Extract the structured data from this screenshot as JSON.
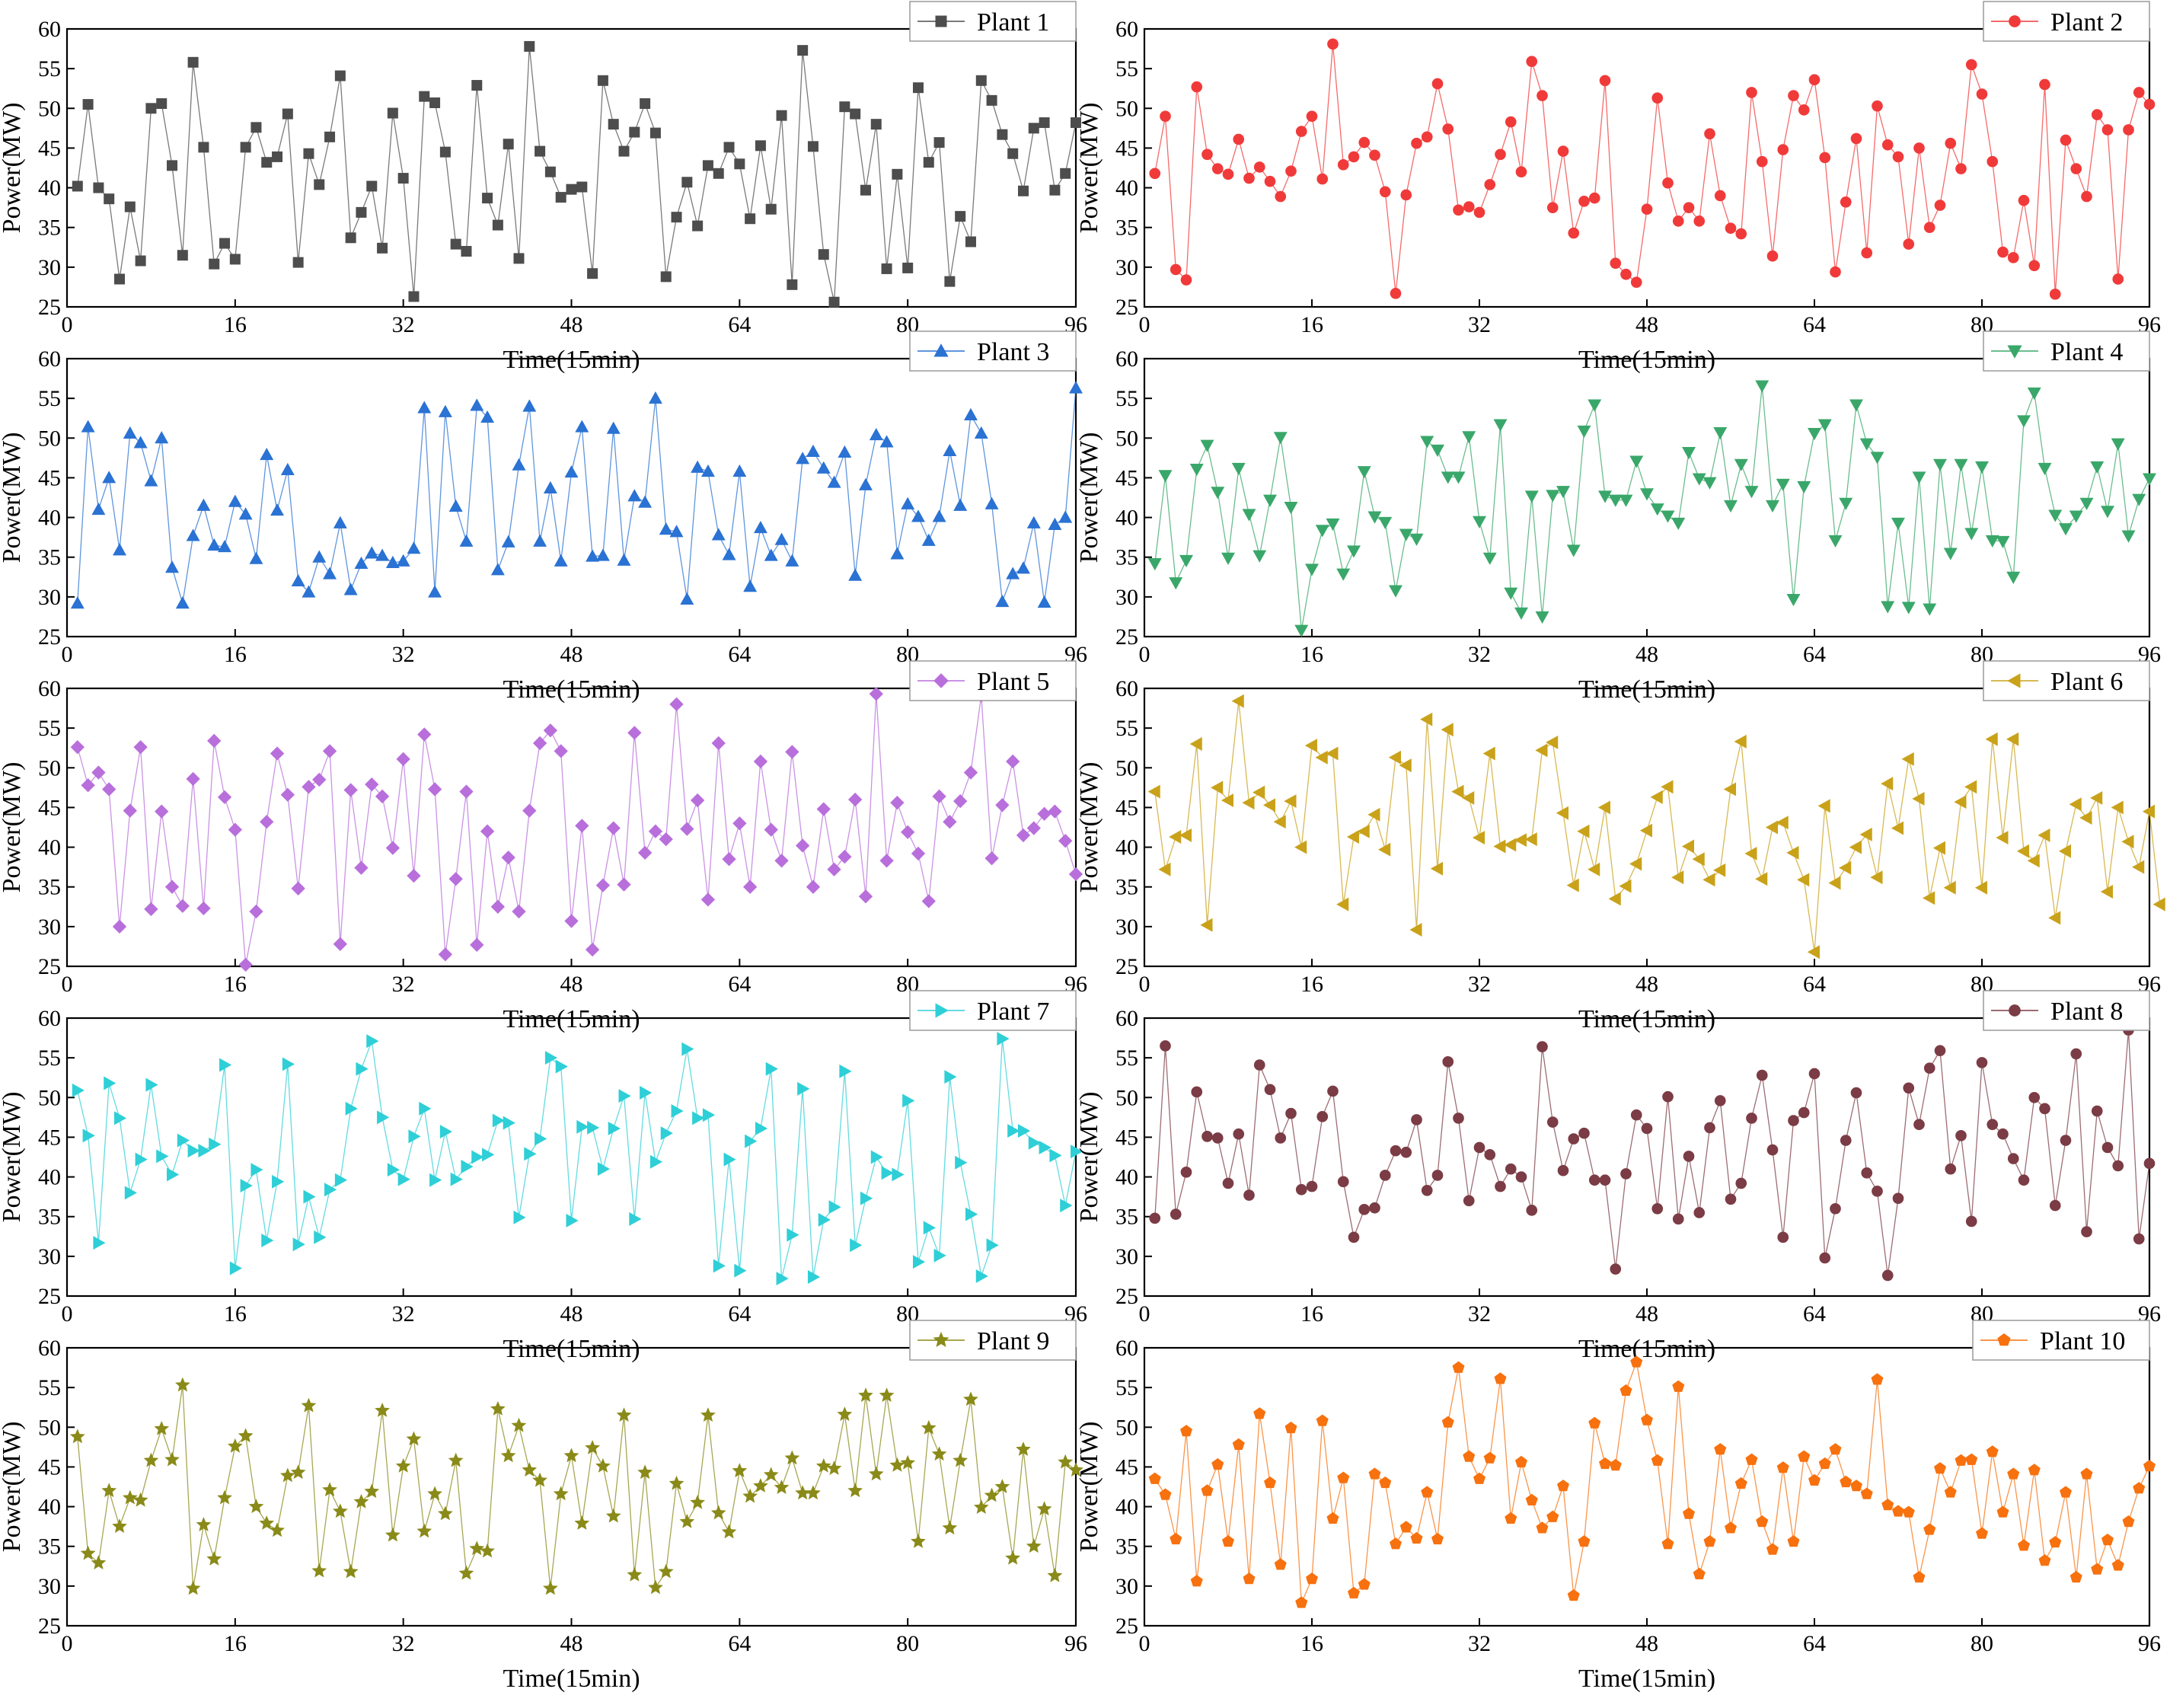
{
  "chart_data": {
    "type": "line",
    "layout": "5 rows x 2 columns of small-multiple line plots",
    "xlabel": "Time(15min)",
    "ylabel": "Power(MW)",
    "xlim": [
      0,
      96
    ],
    "ylim": [
      25,
      60
    ],
    "xticks": [
      0,
      16,
      32,
      48,
      64,
      80,
      96
    ],
    "yticks": [
      25,
      30,
      35,
      40,
      45,
      50,
      55,
      60
    ],
    "grid": false,
    "legend_position": "top-right",
    "panels": [
      {
        "name": "Plant 1",
        "color": "#4d4d4d",
        "marker": "square",
        "values": [
          40.2,
          50.5,
          40,
          38.6,
          28.5,
          37.6,
          30.8,
          50,
          50.6,
          42.8,
          31.5,
          55.8,
          45.1,
          30.4,
          33,
          31,
          45.1,
          47.6,
          43.2,
          43.9,
          49.3,
          30.6,
          44.3,
          40.4,
          46.4,
          54.1,
          33.7,
          36.9,
          40.2,
          32.4,
          49.4,
          41.2,
          26.3,
          51.5,
          50.7,
          44.5,
          32.9,
          32,
          52.9,
          38.7,
          35.3,
          45.5,
          31.1,
          57.8,
          44.6,
          42,
          38.8,
          39.8,
          40.1,
          29.2,
          53.5,
          48,
          44.6,
          47,
          50.6,
          46.9,
          28.8,
          36.3,
          40.7,
          35.2,
          42.8,
          41.8,
          45.1,
          43,
          36.1,
          45.3,
          37.3,
          49.1,
          27.8,
          57.3,
          45.2,
          31.6,
          25.6,
          50.2,
          49.3,
          39.7,
          48,
          29.8,
          41.7,
          29.9,
          52.6,
          43.2,
          45.7,
          28.2,
          36.4,
          33.2,
          53.5,
          51,
          46.7,
          44.3,
          39.6,
          47.5,
          48.2,
          39.7,
          41.8,
          48.2
        ]
      },
      {
        "name": "Plant 2",
        "color": "#f03a3a",
        "marker": "circle",
        "values": [
          41.8,
          49,
          29.7,
          28.4,
          52.7,
          44.2,
          42.4,
          41.7,
          46.1,
          41.2,
          42.6,
          40.8,
          38.9,
          42.1,
          47.1,
          49,
          41.1,
          58.1,
          42.9,
          43.9,
          45.7,
          44.1,
          39.5,
          26.7,
          39.1,
          45.6,
          46.4,
          53.1,
          47.4,
          37.2,
          37.6,
          36.9,
          40.4,
          44.2,
          48.3,
          42,
          55.9,
          51.6,
          37.5,
          44.6,
          34.3,
          38.3,
          38.7,
          53.5,
          30.5,
          29.1,
          28.1,
          37.3,
          51.3,
          40.6,
          35.8,
          37.5,
          35.8,
          46.8,
          39,
          34.9,
          34.2,
          52,
          43.3,
          31.4,
          44.8,
          51.6,
          49.8,
          53.6,
          43.8,
          29.4,
          38.2,
          46.2,
          31.8,
          50.3,
          45.4,
          43.9,
          32.9,
          45,
          35,
          37.8,
          45.6,
          42.4,
          55.5,
          51.8,
          43.3,
          31.9,
          31.2,
          38.4,
          30.2,
          53,
          26.6,
          46,
          42.4,
          38.9,
          49.2,
          47.3,
          28.5,
          47.3,
          52,
          50.5
        ]
      },
      {
        "name": "Plant 3",
        "color": "#2a72d3",
        "marker": "triangle-up",
        "values": [
          29.2,
          51.4,
          41,
          45,
          35.9,
          50.6,
          49.4,
          44.6,
          50,
          33.7,
          29.2,
          37.7,
          41.5,
          36.5,
          36.3,
          42,
          40.4,
          34.8,
          47.9,
          40.9,
          46,
          32,
          30.6,
          35,
          32.9,
          39.3,
          30.9,
          34.2,
          35.5,
          35.2,
          34.3,
          34.5,
          36.1,
          53.8,
          30.6,
          53.3,
          41.4,
          37,
          54.1,
          52.6,
          33.4,
          36.9,
          46.6,
          54,
          37,
          43.7,
          34.5,
          45.7,
          51.4,
          35.1,
          35.2,
          51.2,
          34.6,
          42.7,
          41.9,
          55,
          38.5,
          38.2,
          29.7,
          46.3,
          45.8,
          37.8,
          35.3,
          45.8,
          31.3,
          38.7,
          35.2,
          37.2,
          34.5,
          47.4,
          48.3,
          46.2,
          44.4,
          48.2,
          32.7,
          44.1,
          50.4,
          49.5,
          35.4,
          41.7,
          40.1,
          37.1,
          40.1,
          48.4,
          41.5,
          52.9,
          50.6,
          41.7,
          29.4,
          32.9,
          33.6,
          39.3,
          29.3,
          39.1,
          40,
          56.3
        ]
      },
      {
        "name": "Plant 4",
        "color": "#3aa76a",
        "marker": "triangle-down",
        "values": [
          34.2,
          45.3,
          31.8,
          34.6,
          46.1,
          49.1,
          43.2,
          34.9,
          46.2,
          40.4,
          35.2,
          42.2,
          50.1,
          41.3,
          25.8,
          33.5,
          38.4,
          39.2,
          32.9,
          35.8,
          45.8,
          40.1,
          39.4,
          30.8,
          37.9,
          37.3,
          49.6,
          48.5,
          45.1,
          45.1,
          50.2,
          39.5,
          34.9,
          51.7,
          30.5,
          28,
          42.7,
          27.5,
          42.8,
          43.3,
          35.9,
          50.9,
          54.2,
          42.7,
          42.2,
          42.2,
          47.1,
          43,
          41.1,
          40.2,
          39.3,
          48.2,
          44.9,
          44.4,
          50.7,
          41.5,
          46.7,
          43.3,
          56.6,
          41.5,
          44.2,
          29.7,
          43.9,
          50.6,
          51.7,
          37.1,
          41.8,
          54.2,
          49.3,
          47.6,
          28.8,
          39.3,
          28.7,
          45.1,
          28.5,
          46.7,
          35.5,
          46.7,
          38,
          46.4,
          37.1,
          37,
          32.5,
          52.2,
          55.7,
          46.2,
          40.3,
          38.6,
          40.2,
          41.8,
          46.4,
          40.8,
          49.3,
          37.7,
          42.3,
          44.9
        ]
      },
      {
        "name": "Plant 5",
        "color": "#b86fdb",
        "marker": "diamond",
        "values": [
          52.6,
          47.8,
          49.4,
          47.3,
          30,
          44.6,
          52.6,
          32.2,
          44.5,
          35,
          32.6,
          48.6,
          32.3,
          53.4,
          46.3,
          42.2,
          25.2,
          31.9,
          43.2,
          51.8,
          46.6,
          34.8,
          47.6,
          48.5,
          52.1,
          27.8,
          47.2,
          37.4,
          47.9,
          46.4,
          39.9,
          51.1,
          36.4,
          54.2,
          47.3,
          26.5,
          36,
          47,
          27.7,
          42,
          32.5,
          38.7,
          31.9,
          44.6,
          53.1,
          54.7,
          52.1,
          30.7,
          42.7,
          27.1,
          35.2,
          42.4,
          35.3,
          54.4,
          39.3,
          42,
          41,
          58,
          42.3,
          45.9,
          33.4,
          53.1,
          38.5,
          43,
          35,
          50.8,
          42.2,
          38.3,
          52,
          40.2,
          35,
          44.8,
          37.2,
          38.8,
          46,
          33.8,
          59.3,
          38.3,
          45.6,
          41.9,
          39.2,
          33.2,
          46.4,
          43.2,
          45.8,
          49.4,
          59.1,
          38.6,
          45.3,
          50.8,
          41.5,
          42.4,
          44.2,
          44.5,
          40.8,
          36.6
        ]
      },
      {
        "name": "Plant 6",
        "color": "#c9a21a",
        "marker": "triangle-left",
        "values": [
          47,
          37.2,
          41.3,
          41.5,
          53,
          30.2,
          47.5,
          45.9,
          58.4,
          45.6,
          46.9,
          45.3,
          43.2,
          45.8,
          40,
          52.8,
          51.3,
          51.8,
          32.8,
          41.3,
          42,
          44.1,
          39.7,
          51.3,
          50.3,
          29.6,
          56.1,
          37.3,
          54.8,
          47,
          46.2,
          41.2,
          51.8,
          40.1,
          40.3,
          40.9,
          41,
          52.2,
          53.2,
          44.3,
          35.2,
          42,
          37.2,
          45,
          33.5,
          35.1,
          37.9,
          42.1,
          46.3,
          47.6,
          36.2,
          40.1,
          38.5,
          35.9,
          37.1,
          47.3,
          53.3,
          39.2,
          36,
          42.5,
          43.1,
          39.3,
          35.9,
          26.8,
          45.2,
          35.5,
          37.4,
          40,
          41.6,
          36.2,
          48,
          42.4,
          51.1,
          46.1,
          33.6,
          39.9,
          34.9,
          45.7,
          47.6,
          34.9,
          53.6,
          41.2,
          53.6,
          39.5,
          38.3,
          41.5,
          31.1,
          39.5,
          45.4,
          43.7,
          46.2,
          34.4,
          45,
          40.7,
          37.5,
          44.5,
          32.8
        ]
      },
      {
        "name": "Plant 7",
        "color": "#2fcfd7",
        "marker": "triangle-right",
        "values": [
          50.9,
          45.2,
          31.7,
          51.8,
          47.4,
          38,
          42.2,
          51.6,
          42.6,
          40.3,
          44.6,
          43.3,
          43.3,
          44.1,
          54.1,
          28.5,
          38.9,
          40.9,
          32,
          39.4,
          54.2,
          31.5,
          37.5,
          32.4,
          38.4,
          39.6,
          48.6,
          53.6,
          57.1,
          47.5,
          40.9,
          39.7,
          45.1,
          48.6,
          39.6,
          45.7,
          39.7,
          41.3,
          42.5,
          42.8,
          47.1,
          46.8,
          34.9,
          42.9,
          44.8,
          55,
          53.9,
          34.5,
          46.3,
          46.2,
          41,
          46.1,
          50.2,
          34.7,
          50.6,
          41.9,
          45.5,
          48.3,
          56.1,
          47.4,
          47.8,
          28.8,
          42.2,
          28.2,
          44.5,
          46.1,
          53.6,
          27.2,
          32.7,
          51.1,
          27.4,
          34.6,
          36.2,
          53.3,
          31.4,
          37.3,
          42.5,
          40.5,
          40.3,
          49.6,
          29.3,
          33.6,
          30.1,
          52.6,
          41.8,
          35.3,
          27.5,
          31.4,
          57.4,
          45.8,
          45.8,
          44.3,
          43.7,
          42.7,
          36.4,
          43.2
        ]
      },
      {
        "name": "Plant 8",
        "color": "#7b3c45",
        "marker": "circle",
        "values": [
          34.8,
          56.5,
          35.3,
          40.6,
          50.7,
          45.1,
          44.9,
          39.2,
          45.4,
          37.7,
          54.1,
          51,
          44.9,
          48,
          38.4,
          38.8,
          47.6,
          50.8,
          39.4,
          32.4,
          35.9,
          36.1,
          40.2,
          43.3,
          43.1,
          47.2,
          38.3,
          40.2,
          54.5,
          47.4,
          37,
          43.7,
          42.8,
          38.8,
          41,
          40,
          35.8,
          56.4,
          46.9,
          40.8,
          44.8,
          45.5,
          39.6,
          39.6,
          28.4,
          40.4,
          47.8,
          46.1,
          36,
          50.1,
          34.7,
          42.6,
          35.5,
          46.2,
          49.6,
          37.2,
          39.2,
          47.4,
          52.8,
          43.4,
          32.4,
          47.1,
          48.1,
          53,
          29.8,
          36,
          44.6,
          50.6,
          40.5,
          38.2,
          27.6,
          37.3,
          51.2,
          46.6,
          53.7,
          55.9,
          41,
          45.2,
          34.4,
          54.4,
          46.6,
          45.4,
          42.3,
          39.6,
          50,
          48.6,
          36.4,
          44.6,
          55.5,
          33.1,
          48.3,
          43.7,
          41.4,
          58.5,
          32.2,
          41.7
        ]
      },
      {
        "name": "Plant 9",
        "color": "#8a8a19",
        "marker": "star",
        "values": [
          48.8,
          34.1,
          32.9,
          42,
          37.5,
          41.1,
          40.8,
          45.8,
          49.8,
          45.9,
          55.3,
          29.7,
          37.7,
          33.4,
          41.1,
          47.6,
          48.9,
          40,
          37.9,
          37,
          43.9,
          44.3,
          52.7,
          31.9,
          42.1,
          39.4,
          31.8,
          40.6,
          41.9,
          52.1,
          36.4,
          45.1,
          48.5,
          36.9,
          41.6,
          39.1,
          45.8,
          31.6,
          34.7,
          34.4,
          52.3,
          46.4,
          50.2,
          44.6,
          43.3,
          29.7,
          41.6,
          46.4,
          37.9,
          47.4,
          45.1,
          38.8,
          51.5,
          31.4,
          44.3,
          29.8,
          31.8,
          42.9,
          38.1,
          40.5,
          51.5,
          39.2,
          36.8,
          44.5,
          41.3,
          42.6,
          44,
          42.4,
          46.1,
          41.7,
          41.7,
          45.1,
          44.8,
          51.6,
          42,
          54,
          44.1,
          54,
          45.2,
          45.5,
          35.6,
          49.9,
          46.6,
          37.3,
          45.8,
          53.5,
          39.9,
          41.4,
          42.5,
          33.5,
          47.2,
          35,
          39.7,
          31.3,
          45.6,
          44.6
        ]
      },
      {
        "name": "Plant 10",
        "color": "#f7710e",
        "marker": "pentagon",
        "values": [
          43.5,
          41.5,
          35.9,
          49.5,
          30.6,
          42,
          45.3,
          35.6,
          47.8,
          30.9,
          51.7,
          43,
          32.7,
          49.9,
          27.9,
          30.9,
          50.8,
          38.5,
          43.6,
          29.1,
          30.2,
          44.1,
          43,
          35.3,
          37.4,
          36,
          41.8,
          35.9,
          50.6,
          57.5,
          46.3,
          43.5,
          46.1,
          56.1,
          38.5,
          45.6,
          40.8,
          37.3,
          38.7,
          42.6,
          28.8,
          35.6,
          50.5,
          45.4,
          45.2,
          54.6,
          58.2,
          50.9,
          45.8,
          35.3,
          55.1,
          39.1,
          31.5,
          35.6,
          47.2,
          37.3,
          42.9,
          45.9,
          38.1,
          34.6,
          44.9,
          35.6,
          46.3,
          43.3,
          45.4,
          47.2,
          43.1,
          42.6,
          41.6,
          56,
          40.2,
          39.4,
          39.3,
          31.1,
          37.1,
          44.8,
          41.8,
          45.8,
          45.9,
          36.6,
          46.9,
          39.3,
          44.1,
          35.1,
          44.6,
          33.2,
          35.5,
          41.8,
          31.1,
          44.1,
          32.1,
          35.8,
          32.6,
          38.1,
          42.3,
          45.1
        ]
      }
    ]
  }
}
